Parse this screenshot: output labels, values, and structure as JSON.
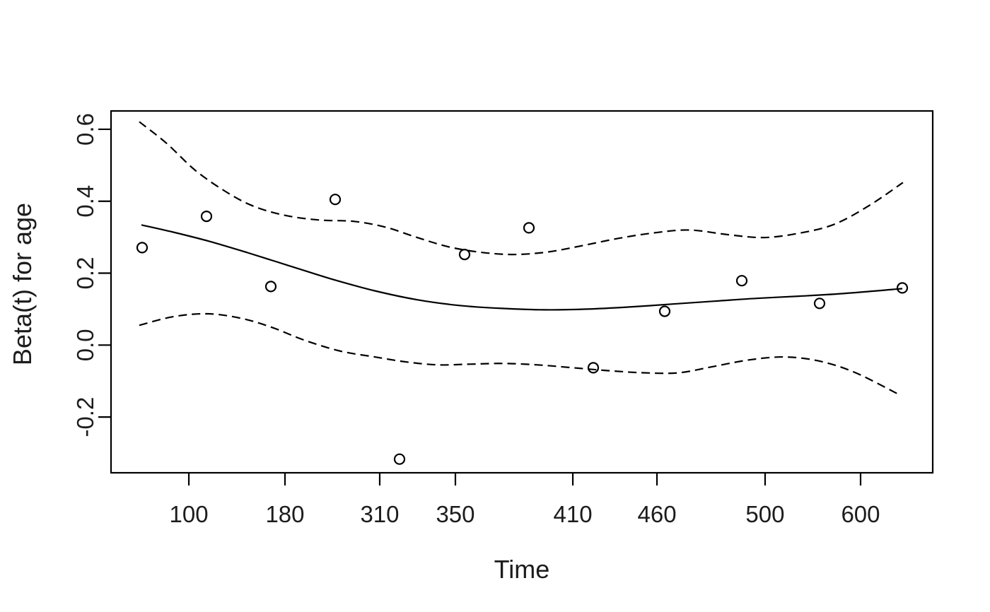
{
  "figure": {
    "background_color": "#ffffff",
    "stroke_color": "#000000",
    "text_color": "#1c1c1c"
  },
  "chart_data": {
    "type": "scatter",
    "subtype": "schoenfeld-residuals-with-smooth-and-ci",
    "xlabel": "Time",
    "ylabel": "Beta(t) for age",
    "legend": "none",
    "grid": "off",
    "x_axis": {
      "scale": "nonlinear-event-time",
      "ticks": [
        {
          "label": "100",
          "pos": 0.0947
        },
        {
          "label": "180",
          "pos": 0.2117
        },
        {
          "label": "310",
          "pos": 0.327
        },
        {
          "label": "350",
          "pos": 0.4191
        },
        {
          "label": "410",
          "pos": 0.562
        },
        {
          "label": "460",
          "pos": 0.6644
        },
        {
          "label": "500",
          "pos": 0.796
        },
        {
          "label": "600",
          "pos": 0.9122
        }
      ]
    },
    "y_axis": {
      "domain": [
        -0.355,
        0.651
      ],
      "ticks": [
        {
          "label": "-0.2",
          "value": -0.2
        },
        {
          "label": "0.0",
          "value": 0.0
        },
        {
          "label": "0.2",
          "value": 0.2
        },
        {
          "label": "0.4",
          "value": 0.4
        },
        {
          "label": "0.6",
          "value": 0.6
        }
      ]
    },
    "style": {
      "marker": "open-circle",
      "marker_radius": 7,
      "smooth_line_style": "solid",
      "ci_line_style": "dashed",
      "color": "#000000"
    },
    "points": [
      {
        "x": 0.0379,
        "beta": 0.271
      },
      {
        "x": 0.1162,
        "beta": 0.358
      },
      {
        "x": 0.1945,
        "beta": 0.163
      },
      {
        "x": 0.2728,
        "beta": 0.405
      },
      {
        "x": 0.3511,
        "beta": -0.317
      },
      {
        "x": 0.4303,
        "beta": 0.252
      },
      {
        "x": 0.5086,
        "beta": 0.326
      },
      {
        "x": 0.5869,
        "beta": -0.063
      },
      {
        "x": 0.6738,
        "beta": 0.094
      },
      {
        "x": 0.7676,
        "beta": 0.179
      },
      {
        "x": 0.8623,
        "beta": 0.116
      },
      {
        "x": 0.963,
        "beta": 0.159
      }
    ],
    "smooth_line": {
      "points": [
        [
          0.037,
          0.334
        ],
        [
          0.0757,
          0.314
        ],
        [
          0.1188,
          0.289
        ],
        [
          0.1661,
          0.257
        ],
        [
          0.2177,
          0.22
        ],
        [
          0.2694,
          0.183
        ],
        [
          0.321,
          0.151
        ],
        [
          0.3727,
          0.126
        ],
        [
          0.4243,
          0.11
        ],
        [
          0.4759,
          0.102
        ],
        [
          0.5275,
          0.098
        ],
        [
          0.5792,
          0.1
        ],
        [
          0.6308,
          0.106
        ],
        [
          0.6824,
          0.114
        ],
        [
          0.7341,
          0.122
        ],
        [
          0.7857,
          0.13
        ],
        [
          0.8373,
          0.136
        ],
        [
          0.889,
          0.143
        ],
        [
          0.963,
          0.157
        ]
      ]
    },
    "ci_upper": {
      "points": [
        [
          0.0344,
          0.621
        ],
        [
          0.0671,
          0.562
        ],
        [
          0.1015,
          0.488
        ],
        [
          0.136,
          0.432
        ],
        [
          0.1704,
          0.389
        ],
        [
          0.2091,
          0.362
        ],
        [
          0.2521,
          0.348
        ],
        [
          0.2952,
          0.344
        ],
        [
          0.3339,
          0.328
        ],
        [
          0.3726,
          0.299
        ],
        [
          0.4114,
          0.273
        ],
        [
          0.4501,
          0.258
        ],
        [
          0.4905,
          0.252
        ],
        [
          0.5318,
          0.259
        ],
        [
          0.5748,
          0.277
        ],
        [
          0.6179,
          0.297
        ],
        [
          0.6609,
          0.312
        ],
        [
          0.7039,
          0.32
        ],
        [
          0.7513,
          0.307
        ],
        [
          0.7943,
          0.299
        ],
        [
          0.8373,
          0.311
        ],
        [
          0.8804,
          0.336
        ],
        [
          0.9234,
          0.389
        ],
        [
          0.9638,
          0.452
        ]
      ]
    },
    "ci_lower": {
      "points": [
        [
          0.0344,
          0.055
        ],
        [
          0.0757,
          0.079
        ],
        [
          0.117,
          0.087
        ],
        [
          0.1575,
          0.075
        ],
        [
          0.1962,
          0.049
        ],
        [
          0.2349,
          0.014
        ],
        [
          0.278,
          -0.016
        ],
        [
          0.321,
          -0.033
        ],
        [
          0.3597,
          -0.047
        ],
        [
          0.3984,
          -0.055
        ],
        [
          0.4372,
          -0.053
        ],
        [
          0.4759,
          -0.051
        ],
        [
          0.5189,
          -0.055
        ],
        [
          0.562,
          -0.063
        ],
        [
          0.605,
          -0.071
        ],
        [
          0.648,
          -0.077
        ],
        [
          0.691,
          -0.077
        ],
        [
          0.7341,
          -0.059
        ],
        [
          0.7771,
          -0.041
        ],
        [
          0.8201,
          -0.033
        ],
        [
          0.8632,
          -0.045
        ],
        [
          0.9062,
          -0.077
        ],
        [
          0.9595,
          -0.138
        ]
      ]
    }
  }
}
